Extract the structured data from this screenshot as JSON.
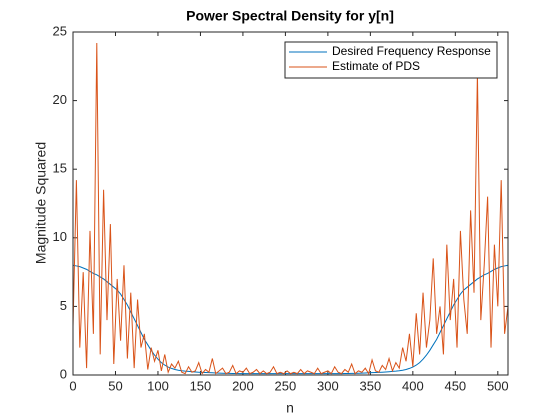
{
  "chart_data": {
    "type": "line",
    "title": "Power Spectral Density for y[n]",
    "xlabel": "n",
    "ylabel": "Magnitude Squared",
    "xlim": [
      0,
      512
    ],
    "ylim": [
      0,
      25
    ],
    "xticks": [
      0,
      50,
      100,
      150,
      200,
      250,
      300,
      350,
      400,
      450,
      500
    ],
    "yticks": [
      0,
      5,
      10,
      15,
      20,
      25
    ],
    "grid": false,
    "legend": "upper right",
    "x": [
      0,
      4,
      8,
      12,
      16,
      20,
      24,
      28,
      32,
      36,
      40,
      44,
      48,
      52,
      56,
      60,
      64,
      68,
      72,
      76,
      80,
      84,
      88,
      92,
      96,
      100,
      104,
      108,
      112,
      116,
      120,
      124,
      128,
      132,
      136,
      140,
      144,
      148,
      152,
      156,
      160,
      164,
      168,
      172,
      176,
      180,
      184,
      188,
      192,
      196,
      200,
      204,
      208,
      212,
      216,
      220,
      224,
      228,
      232,
      236,
      240,
      244,
      248,
      252,
      256,
      260,
      264,
      268,
      272,
      276,
      280,
      284,
      288,
      292,
      296,
      300,
      304,
      308,
      312,
      316,
      320,
      324,
      328,
      332,
      336,
      340,
      344,
      348,
      352,
      356,
      360,
      364,
      368,
      372,
      376,
      380,
      384,
      388,
      392,
      396,
      400,
      404,
      408,
      412,
      416,
      420,
      424,
      428,
      432,
      436,
      440,
      444,
      448,
      452,
      456,
      460,
      464,
      468,
      472,
      476,
      480,
      484,
      488,
      492,
      496,
      500,
      504,
      508,
      512
    ],
    "series": [
      {
        "name": "Desired Frequency Response",
        "color": "#0072BD",
        "values": [
          8,
          7.95,
          7.9,
          7.8,
          7.7,
          7.55,
          7.4,
          7.3,
          7.15,
          7,
          6.8,
          6.6,
          6.4,
          6.2,
          5.9,
          5.5,
          5.1,
          4.6,
          4.1,
          3.6,
          3.1,
          2.6,
          2.2,
          1.8,
          1.45,
          1.15,
          0.9,
          0.72,
          0.58,
          0.48,
          0.4,
          0.35,
          0.31,
          0.28,
          0.26,
          0.24,
          0.22,
          0.2,
          0.19,
          0.18,
          0.17,
          0.16,
          0.15,
          0.14,
          0.13,
          0.12,
          0.12,
          0.11,
          0.11,
          0.1,
          0.1,
          0.1,
          0.1,
          0.1,
          0.1,
          0.1,
          0.1,
          0.1,
          0.1,
          0.1,
          0.1,
          0.1,
          0.1,
          0.1,
          0.1,
          0.1,
          0.1,
          0.1,
          0.1,
          0.1,
          0.1,
          0.1,
          0.1,
          0.1,
          0.1,
          0.1,
          0.1,
          0.1,
          0.1,
          0.1,
          0.11,
          0.11,
          0.12,
          0.12,
          0.13,
          0.14,
          0.15,
          0.16,
          0.17,
          0.18,
          0.19,
          0.2,
          0.22,
          0.24,
          0.26,
          0.28,
          0.31,
          0.35,
          0.4,
          0.48,
          0.58,
          0.72,
          0.9,
          1.15,
          1.45,
          1.8,
          2.2,
          2.6,
          3.1,
          3.6,
          4.1,
          4.6,
          5.1,
          5.5,
          5.9,
          6.2,
          6.4,
          6.6,
          6.8,
          7,
          7.15,
          7.3,
          7.4,
          7.55,
          7.7,
          7.8,
          7.9,
          7.95,
          8
        ]
      },
      {
        "name": "Estimate of PDS",
        "color": "#D95319",
        "values": [
          3.5,
          14.2,
          2,
          7.5,
          0.5,
          10.5,
          3,
          24.2,
          1.5,
          13.5,
          4,
          11,
          0.8,
          7,
          2.5,
          8,
          1.2,
          6,
          0.5,
          5.5,
          2,
          3,
          0.4,
          2,
          1,
          1.8,
          0.3,
          1.5,
          0.2,
          0.8,
          0.5,
          1,
          0.2,
          0.1,
          0.6,
          0.2,
          0.3,
          0.9,
          0.1,
          0.4,
          0.2,
          1.2,
          0.1,
          0.3,
          0.5,
          0.1,
          0.2,
          0.7,
          0.1,
          0.3,
          0.2,
          0.5,
          0.1,
          0.2,
          0.4,
          0.1,
          0.3,
          0.1,
          0.2,
          0.6,
          0.1,
          0.2,
          0.1,
          0.3,
          0.1,
          0.2,
          0.1,
          0.4,
          0.1,
          0.3,
          0.2,
          0.1,
          0.5,
          0.1,
          0.2,
          0.3,
          0.1,
          0.6,
          0.2,
          0.1,
          0.4,
          0.2,
          0.8,
          0.1,
          0.3,
          0.2,
          0.5,
          0.1,
          1.1,
          0.3,
          0.2,
          0.7,
          0.4,
          1.2,
          0.3,
          0.9,
          0.5,
          2,
          1,
          3,
          0.6,
          4.5,
          1.5,
          6,
          2,
          4,
          8.5,
          3,
          5,
          1.5,
          9.5,
          4,
          7,
          2,
          10.5,
          5.5,
          3,
          12,
          6,
          22,
          4,
          8,
          13,
          2,
          9.5,
          5,
          14.2,
          3,
          5
        ]
      }
    ]
  }
}
